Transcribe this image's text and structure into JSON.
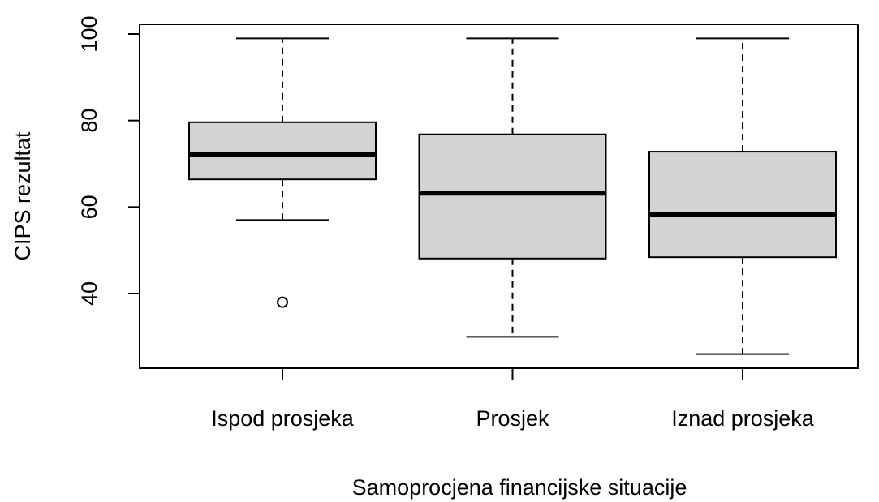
{
  "chart_data": {
    "type": "box",
    "xlabel": "Samoprocjena financijske situacije",
    "ylabel": "CIPS rezultat",
    "categories": [
      "Ispod prosjeka",
      "Prosjek",
      "Iznad prosjeka"
    ],
    "boxes": [
      {
        "whisker_low": 57,
        "q1": 66.4,
        "median": 72.2,
        "q3": 79.6,
        "whisker_high": 99,
        "outliers": [
          38
        ]
      },
      {
        "whisker_low": 30,
        "q1": 48.1,
        "median": 63.2,
        "q3": 76.8,
        "whisker_high": 99,
        "outliers": []
      },
      {
        "whisker_low": 26,
        "q1": 48.4,
        "median": 58.2,
        "q3": 72.8,
        "whisker_high": 99,
        "outliers": []
      }
    ],
    "color": "#d3d3d3",
    "ylim": [
      22.75,
      102.25
    ],
    "yticks": [
      40,
      60,
      80,
      100
    ]
  }
}
